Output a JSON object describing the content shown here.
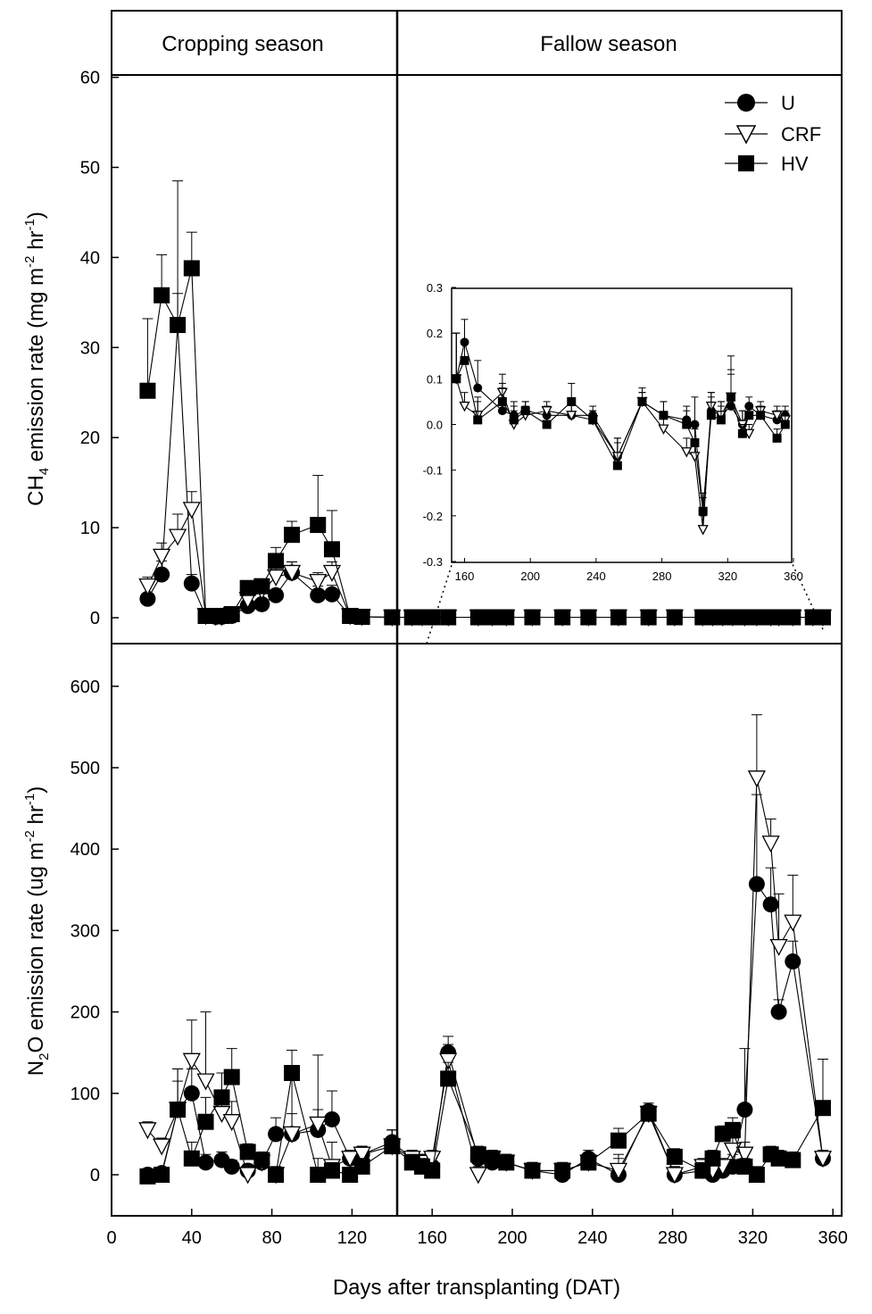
{
  "chart_data": [
    {
      "type": "line",
      "panel": "top",
      "ylabel_html": "CH<sub>4</sub> emission rate (mg m<sup>-2</sup> hr<sup>-1</sup>)",
      "ylabel_parts": [
        "CH",
        "4",
        " emission rate (mg m",
        "-2",
        " hr",
        "-1",
        ")"
      ],
      "ylim": [
        0,
        60
      ],
      "yticks": [
        "0",
        "10",
        "20",
        "30",
        "40",
        "50",
        "60"
      ],
      "xlim": [
        0,
        365
      ],
      "season_labels": [
        "Cropping season",
        "Fallow season"
      ],
      "season_boundary_dat": 143,
      "legend": [
        "U",
        "CRF",
        "HV"
      ],
      "legend_position": "top-right",
      "series": [
        {
          "name": "U",
          "marker": "filled-circle",
          "x": [
            18,
            25,
            33,
            40,
            47,
            52,
            55,
            60,
            68,
            75,
            82,
            90,
            103,
            110,
            119,
            125,
            140,
            150,
            155,
            160,
            168,
            183,
            190,
            197,
            210,
            225,
            238,
            253,
            268,
            281,
            295,
            300,
            305,
            310,
            316,
            322,
            329,
            333,
            340,
            350,
            355
          ],
          "y": [
            2.1,
            4.8,
            32.5,
            3.8,
            0.2,
            0.1,
            0.1,
            0.2,
            1.3,
            1.5,
            2.5,
            5.0,
            2.5,
            2.6,
            0.2,
            0.1,
            0.1,
            0.1,
            0.1,
            0.18,
            0.08,
            0.03,
            0.02,
            0.03,
            0.02,
            0.02,
            0.02,
            -0.07,
            0.05,
            0.02,
            0.01,
            0.0,
            -0.19,
            0.03,
            0.02,
            0.04,
            0.0,
            0.04,
            0.02,
            0.01,
            0.02
          ],
          "yerr": [
            1.8,
            1.5,
            16,
            1.0,
            0.1,
            0.1,
            0.1,
            0.1,
            0.5,
            0.5,
            0.6,
            1.2,
            1.0,
            1.0,
            0.1,
            0.1,
            0.1,
            0.1,
            0.1,
            0.05,
            0.06,
            0.05,
            0.03,
            0.02,
            0.02,
            0.03,
            0.02,
            0.04,
            0.03,
            0.03,
            0.03,
            0.06,
            0.04,
            0.04,
            0.03,
            0.08,
            0.03,
            0.02,
            0.02,
            0.02,
            0.02
          ]
        },
        {
          "name": "CRF",
          "marker": "open-triangle-down",
          "x": [
            18,
            25,
            33,
            40,
            47,
            52,
            55,
            60,
            68,
            75,
            82,
            90,
            103,
            110,
            119,
            125,
            140,
            150,
            155,
            160,
            168,
            183,
            190,
            197,
            210,
            225,
            238,
            253,
            268,
            281,
            295,
            300,
            305,
            310,
            316,
            322,
            329,
            333,
            340,
            350,
            355
          ],
          "y": [
            3.5,
            6.8,
            9.0,
            12.0,
            0.2,
            0.1,
            0.1,
            0.3,
            2.0,
            3.0,
            4.5,
            5.0,
            4.0,
            5.0,
            0.2,
            0.1,
            0.1,
            0.1,
            0.1,
            0.04,
            0.02,
            0.07,
            0.0,
            0.02,
            0.03,
            0.02,
            0.01,
            -0.07,
            0.05,
            -0.01,
            -0.06,
            -0.07,
            -0.23,
            0.04,
            0.02,
            0.06,
            0.0,
            -0.02,
            0.03,
            0.02,
            0.01
          ],
          "yerr": [
            1.0,
            1.5,
            2.5,
            2.0,
            0.1,
            0.1,
            0.1,
            0.1,
            0.5,
            0.8,
            1.0,
            1.2,
            1.0,
            1.2,
            0.1,
            0.1,
            0.1,
            0.1,
            0.1,
            0.03,
            0.03,
            0.04,
            0.03,
            0.02,
            0.02,
            0.03,
            0.02,
            0.04,
            0.02,
            0.03,
            0.03,
            0.03,
            0.03,
            0.03,
            0.03,
            0.05,
            0.03,
            0.02,
            0.02,
            0.02,
            0.02
          ]
        },
        {
          "name": "HV",
          "marker": "filled-square",
          "x": [
            18,
            25,
            33,
            40,
            47,
            52,
            55,
            60,
            68,
            75,
            82,
            90,
            103,
            110,
            119,
            125,
            140,
            150,
            155,
            160,
            168,
            183,
            190,
            197,
            210,
            225,
            238,
            253,
            268,
            281,
            295,
            300,
            305,
            310,
            316,
            322,
            329,
            333,
            340,
            350,
            355
          ],
          "y": [
            25.2,
            35.8,
            32.5,
            38.8,
            0.2,
            0.2,
            0.2,
            0.4,
            3.3,
            3.5,
            6.3,
            9.2,
            10.3,
            7.6,
            0.2,
            0.1,
            0.1,
            0.1,
            0.1,
            0.14,
            0.01,
            0.05,
            0.01,
            0.03,
            0.0,
            0.05,
            0.01,
            -0.09,
            0.05,
            0.02,
            0.0,
            -0.04,
            -0.19,
            0.02,
            0.01,
            0.06,
            -0.02,
            0.02,
            0.02,
            -0.03,
            0.0
          ],
          "yerr": [
            8.0,
            4.5,
            3.5,
            4.0,
            0.1,
            0.1,
            0.1,
            0.1,
            0.8,
            0.8,
            1.5,
            1.5,
            5.5,
            4.3,
            0.1,
            0.1,
            0.1,
            0.1,
            0.1,
            0.04,
            0.05,
            0.04,
            0.03,
            0.02,
            0.02,
            0.04,
            0.02,
            0.05,
            0.02,
            0.03,
            0.03,
            0.03,
            0.03,
            0.04,
            0.03,
            0.09,
            0.02,
            0.02,
            0.02,
            0.02,
            0.02
          ]
        }
      ],
      "inset": {
        "xlim": [
          150,
          365
        ],
        "xticks": [
          "160",
          "200",
          "240",
          "280",
          "320",
          "360"
        ],
        "ylim": [
          -0.3,
          0.3
        ],
        "yticks": [
          "-0.3",
          "-0.2",
          "-0.1",
          "0.0",
          "0.1",
          "0.2",
          "0.3"
        ]
      }
    },
    {
      "type": "line",
      "panel": "bottom",
      "ylabel_parts": [
        "N",
        "2",
        "O emission rate (ug m",
        "-2",
        " hr",
        "-1",
        ")"
      ],
      "ylim": [
        -50,
        650
      ],
      "yticks": [
        "0",
        "100",
        "200",
        "300",
        "400",
        "500",
        "600"
      ],
      "xlabel": "Days after transplanting (DAT)",
      "xlim": [
        0,
        365
      ],
      "xticks": [
        "0",
        "40",
        "80",
        "120",
        "160",
        "200",
        "240",
        "280",
        "320",
        "360"
      ],
      "series": [
        {
          "name": "U",
          "marker": "filled-circle",
          "x": [
            18,
            25,
            33,
            40,
            47,
            55,
            60,
            68,
            75,
            82,
            90,
            103,
            110,
            119,
            125,
            140,
            150,
            155,
            160,
            168,
            183,
            190,
            197,
            210,
            225,
            238,
            253,
            268,
            281,
            295,
            300,
            305,
            310,
            316,
            322,
            329,
            333,
            340,
            355
          ],
          "y": [
            0,
            2,
            80,
            100,
            15,
            18,
            10,
            5,
            15,
            50,
            50,
            55,
            68,
            20,
            25,
            40,
            20,
            15,
            10,
            150,
            20,
            15,
            15,
            5,
            0,
            20,
            0,
            78,
            0,
            5,
            0,
            5,
            10,
            80,
            357,
            332,
            200,
            262,
            20
          ],
          "yerr": [
            5,
            5,
            35,
            30,
            10,
            10,
            8,
            8,
            10,
            20,
            25,
            25,
            35,
            10,
            10,
            15,
            10,
            10,
            10,
            20,
            10,
            10,
            10,
            10,
            10,
            10,
            20,
            10,
            10,
            10,
            10,
            10,
            15,
            75,
            110,
            45,
            15,
            25,
            10
          ]
        },
        {
          "name": "CRF",
          "marker": "open-triangle-down",
          "x": [
            18,
            25,
            33,
            40,
            47,
            55,
            60,
            68,
            75,
            82,
            90,
            103,
            110,
            119,
            125,
            140,
            150,
            155,
            160,
            168,
            183,
            190,
            197,
            210,
            225,
            238,
            253,
            268,
            281,
            295,
            300,
            305,
            310,
            316,
            322,
            329,
            333,
            340,
            355
          ],
          "y": [
            55,
            35,
            80,
            140,
            115,
            75,
            65,
            0,
            15,
            0,
            50,
            62,
            10,
            20,
            25,
            35,
            20,
            15,
            20,
            140,
            0,
            20,
            15,
            5,
            5,
            15,
            5,
            75,
            0,
            10,
            5,
            10,
            30,
            25,
            487,
            407,
            280,
            310,
            20
          ],
          "yerr": [
            10,
            10,
            50,
            50,
            85,
            25,
            25,
            10,
            10,
            10,
            70,
            85,
            30,
            10,
            10,
            20,
            10,
            10,
            10,
            20,
            10,
            10,
            10,
            10,
            10,
            10,
            20,
            10,
            10,
            10,
            10,
            10,
            15,
            15,
            78,
            30,
            65,
            58,
            10
          ]
        },
        {
          "name": "HV",
          "marker": "filled-square",
          "x": [
            18,
            25,
            33,
            40,
            47,
            55,
            60,
            68,
            75,
            82,
            90,
            103,
            110,
            119,
            125,
            140,
            150,
            155,
            160,
            168,
            183,
            190,
            197,
            210,
            225,
            238,
            253,
            268,
            281,
            295,
            300,
            305,
            310,
            316,
            322,
            329,
            333,
            340,
            355
          ],
          "y": [
            -2,
            0,
            80,
            20,
            65,
            95,
            120,
            28,
            18,
            0,
            125,
            0,
            5,
            0,
            10,
            35,
            15,
            10,
            5,
            118,
            25,
            20,
            15,
            5,
            5,
            15,
            42,
            75,
            22,
            5,
            20,
            50,
            55,
            10,
            0,
            25,
            20,
            18,
            82
          ],
          "yerr": [
            5,
            5,
            50,
            20,
            30,
            30,
            35,
            10,
            10,
            10,
            28,
            20,
            10,
            5,
            10,
            20,
            10,
            10,
            10,
            20,
            10,
            10,
            10,
            10,
            10,
            10,
            15,
            10,
            10,
            10,
            10,
            10,
            15,
            10,
            10,
            10,
            10,
            10,
            60
          ]
        }
      ]
    }
  ]
}
